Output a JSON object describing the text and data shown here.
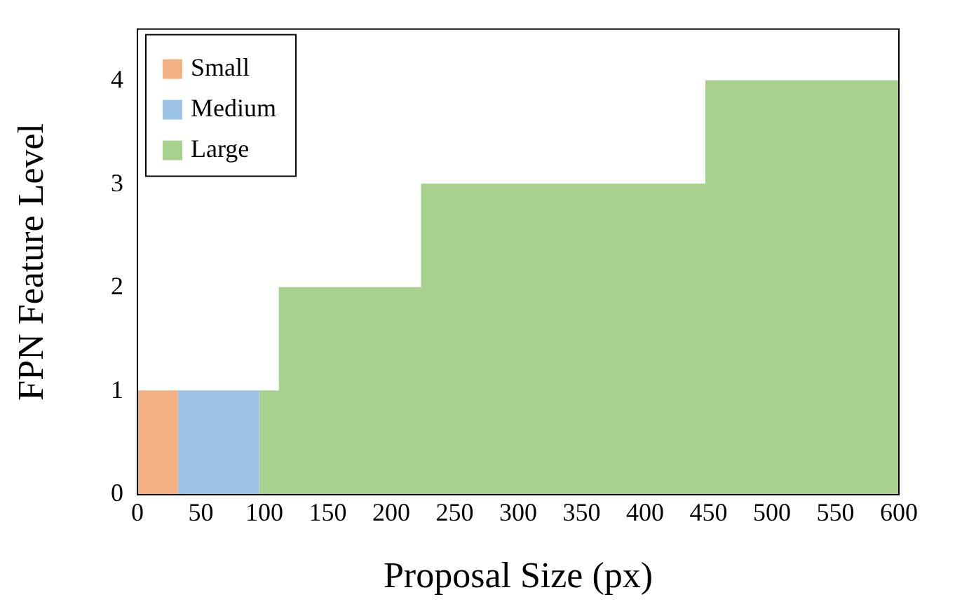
{
  "chart_data": {
    "type": "area",
    "xlabel": "Proposal Size (px)",
    "ylabel": "FPN Feature Level",
    "xlim": [
      0,
      600
    ],
    "xticks": [
      0,
      50,
      100,
      150,
      200,
      250,
      300,
      350,
      400,
      450,
      500,
      550,
      600
    ],
    "ylim": [
      0,
      4.5
    ],
    "yticks": [
      0,
      1,
      2,
      3,
      4
    ],
    "grid": false,
    "legend": "top left",
    "series": [
      {
        "name": "Small",
        "color": "#f4b183",
        "x": [
          0,
          32
        ],
        "values": [
          1,
          1
        ]
      },
      {
        "name": "Medium",
        "color": "#9dc3e6",
        "x": [
          32,
          96
        ],
        "values": [
          1,
          1
        ]
      },
      {
        "name": "Large",
        "color": "#a9d18e",
        "x": [
          96,
          112,
          112,
          224,
          224,
          448,
          448,
          600
        ],
        "values": [
          1,
          1,
          2,
          2,
          3,
          3,
          4,
          4
        ]
      }
    ]
  }
}
